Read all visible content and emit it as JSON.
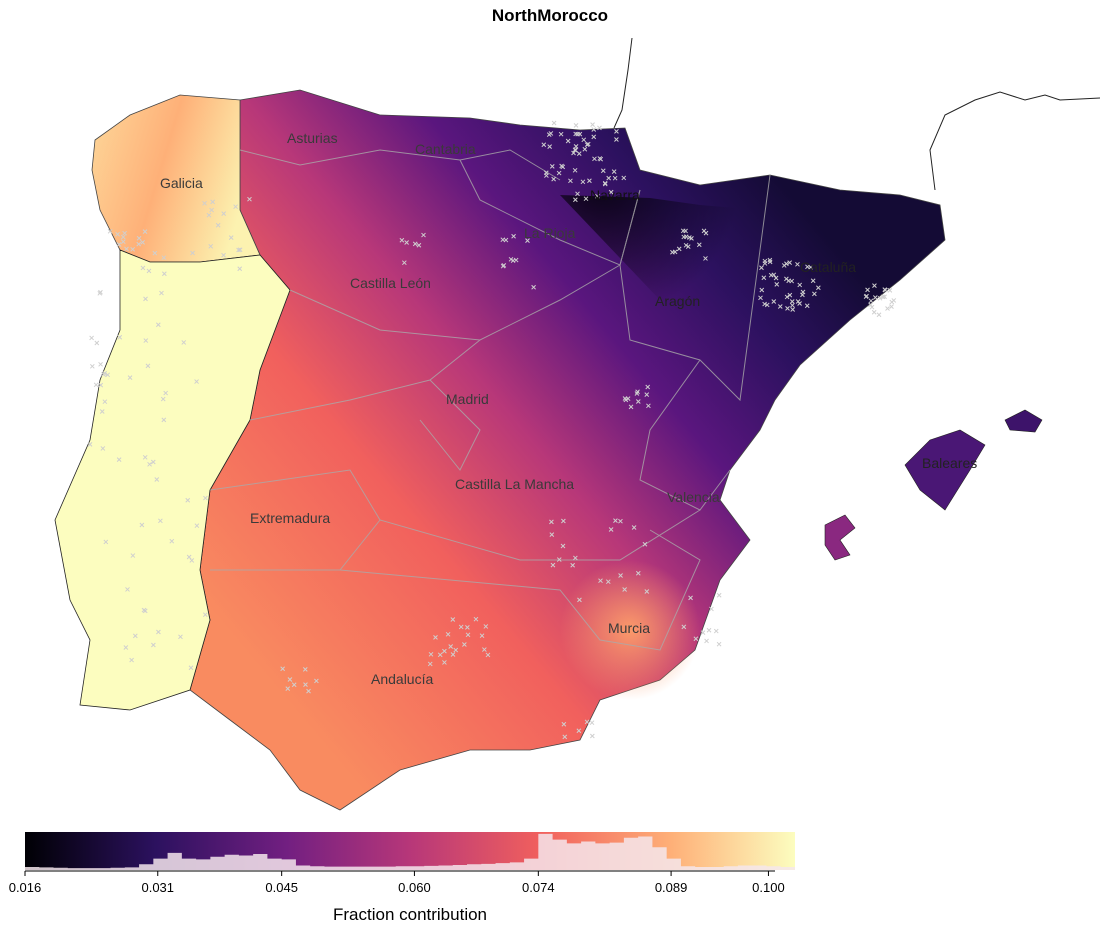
{
  "title": "NorthMorocco",
  "regions": [
    "Galicia",
    "Asturias",
    "Cantabria",
    "Navarra",
    "La Rioja",
    "Castilla León",
    "Aragón",
    "Cataluña",
    "Madrid",
    "Castilla La Mancha",
    "Valencia",
    "Extremadura",
    "Andalucía",
    "Murcia",
    "Baleares"
  ],
  "legend": {
    "title": "Fraction contribution",
    "ticks": [
      "0.016",
      "0.031",
      "0.045",
      "0.060",
      "0.074",
      "0.089",
      "0.100"
    ],
    "tick_values": [
      0.016,
      0.031,
      0.045,
      0.06,
      0.074,
      0.089,
      0.1
    ],
    "range": [
      0.016,
      0.103
    ],
    "palette": "magma",
    "colors": [
      "#000004",
      "#2c115f",
      "#721f81",
      "#b73779",
      "#f1605d",
      "#feb078",
      "#fcfdbf"
    ],
    "histogram": [
      0.08,
      0.07,
      0.06,
      0.05,
      0.05,
      0.05,
      0.06,
      0.07,
      0.15,
      0.3,
      0.45,
      0.3,
      0.28,
      0.35,
      0.4,
      0.38,
      0.42,
      0.3,
      0.28,
      0.12,
      0.1,
      0.09,
      0.09,
      0.09,
      0.09,
      0.09,
      0.1,
      0.1,
      0.11,
      0.12,
      0.13,
      0.15,
      0.16,
      0.18,
      0.2,
      0.3,
      0.95,
      0.8,
      0.7,
      0.75,
      0.7,
      0.72,
      0.85,
      0.88,
      0.6,
      0.3,
      0.1,
      0.08,
      0.08,
      0.1,
      0.12,
      0.12,
      0.1,
      0.08
    ]
  },
  "marker_symbol": "x"
}
